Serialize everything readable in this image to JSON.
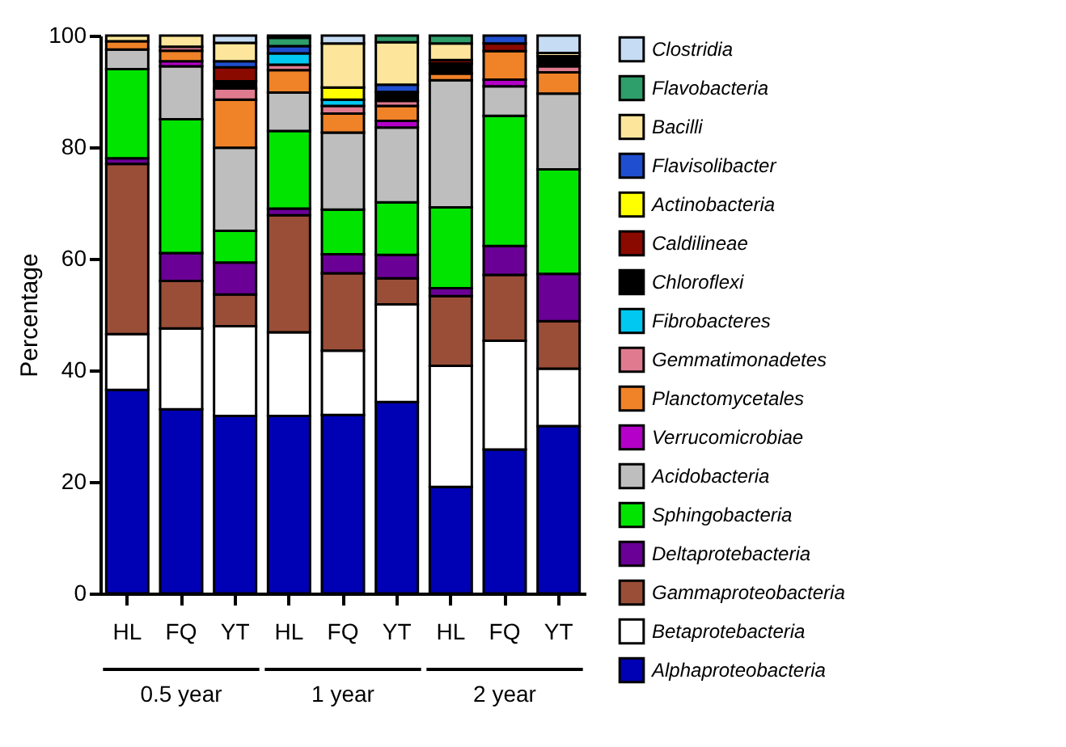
{
  "chart_data": {
    "type": "bar",
    "stacked": true,
    "ylabel": "Percentage",
    "ylim": [
      0,
      100
    ],
    "yticks": [
      0,
      20,
      40,
      60,
      80,
      100
    ],
    "grid": false,
    "legend": "right",
    "categories": [
      "HL",
      "FQ",
      "YT",
      "HL",
      "FQ",
      "YT",
      "HL",
      "FQ",
      "YT"
    ],
    "annotations": [
      "0.5 year",
      "1 year",
      "2 year"
    ],
    "series": [
      {
        "name": "Alphaproteobacteria",
        "color": "#0000b4",
        "values": [
          36.5,
          33,
          31.8,
          31.8,
          32,
          34.3,
          19.1,
          25.8,
          30
        ]
      },
      {
        "name": "Betaprotebacteria",
        "color": "#ffffff",
        "values": [
          10,
          14.5,
          16.1,
          15,
          11.5,
          17.5,
          21.7,
          19.5,
          10.3
        ]
      },
      {
        "name": "Gammaproteobacteria",
        "color": "#9a4e37",
        "values": [
          30.5,
          8.5,
          5.7,
          21,
          13.9,
          4.7,
          12.5,
          11.8,
          8.5
        ]
      },
      {
        "name": "Deltaprotebacteria",
        "color": "#6a0096",
        "values": [
          1,
          5,
          5.7,
          1.2,
          3.4,
          4.2,
          1.4,
          5.2,
          8.5
        ]
      },
      {
        "name": "Sphingobacteria",
        "color": "#00e400",
        "values": [
          16,
          24,
          5.7,
          13.9,
          8,
          9.4,
          14.5,
          23.3,
          18.7
        ]
      },
      {
        "name": "Acidobacteria",
        "color": "#bebebe",
        "values": [
          3.5,
          9.5,
          14.9,
          6.9,
          13.8,
          13.4,
          22.8,
          5.3,
          13.6
        ]
      },
      {
        "name": "Verrucomicrobiae",
        "color": "#b400c8",
        "values": [
          null,
          0.9,
          null,
          null,
          null,
          1.2,
          null,
          1.2,
          null
        ]
      },
      {
        "name": "Planctomycetales",
        "color": "#f08228",
        "values": [
          1.5,
          1.9,
          8.6,
          4,
          3.4,
          2.7,
          1.2,
          5.1,
          3.8
        ]
      },
      {
        "name": "Gemmatimonadetes",
        "color": "#e07b8f",
        "values": [
          null,
          0.7,
          2,
          1,
          1.4,
          0.9,
          null,
          null,
          1.1
        ]
      },
      {
        "name": "Fibrobacteres",
        "color": "#00c8f0",
        "values": [
          null,
          null,
          null,
          2,
          1.1,
          null,
          null,
          null,
          null
        ]
      },
      {
        "name": "Chloroflexi",
        "color": "#000000",
        "values": [
          null,
          null,
          1.3,
          null,
          null,
          1.6,
          1.8,
          null,
          1.8
        ]
      },
      {
        "name": "Caldilineae",
        "color": "#8b0a00",
        "values": [
          null,
          null,
          2.5,
          null,
          null,
          null,
          0.6,
          1.4,
          null
        ]
      },
      {
        "name": "Actinobacteria",
        "color": "#ffff00",
        "values": [
          null,
          null,
          null,
          null,
          2.2,
          null,
          null,
          null,
          null
        ]
      },
      {
        "name": "Flavisolibacter",
        "color": "#1f4fd0",
        "values": [
          null,
          null,
          1.1,
          1.3,
          null,
          1.3,
          null,
          1.4,
          null
        ]
      },
      {
        "name": "Bacilli",
        "color": "#fde69b",
        "values": [
          1,
          2,
          3.3,
          null,
          7.9,
          7.6,
          3,
          null,
          0.6
        ]
      },
      {
        "name": "Flavobacteria",
        "color": "#2e9e6a",
        "values": [
          null,
          null,
          null,
          1.5,
          null,
          1.2,
          1.4,
          null,
          null
        ]
      },
      {
        "name": "Clostridia",
        "color": "#c6dcf5",
        "values": [
          null,
          null,
          1.3,
          0.4,
          1.4,
          null,
          null,
          null,
          3.1
        ]
      }
    ]
  }
}
